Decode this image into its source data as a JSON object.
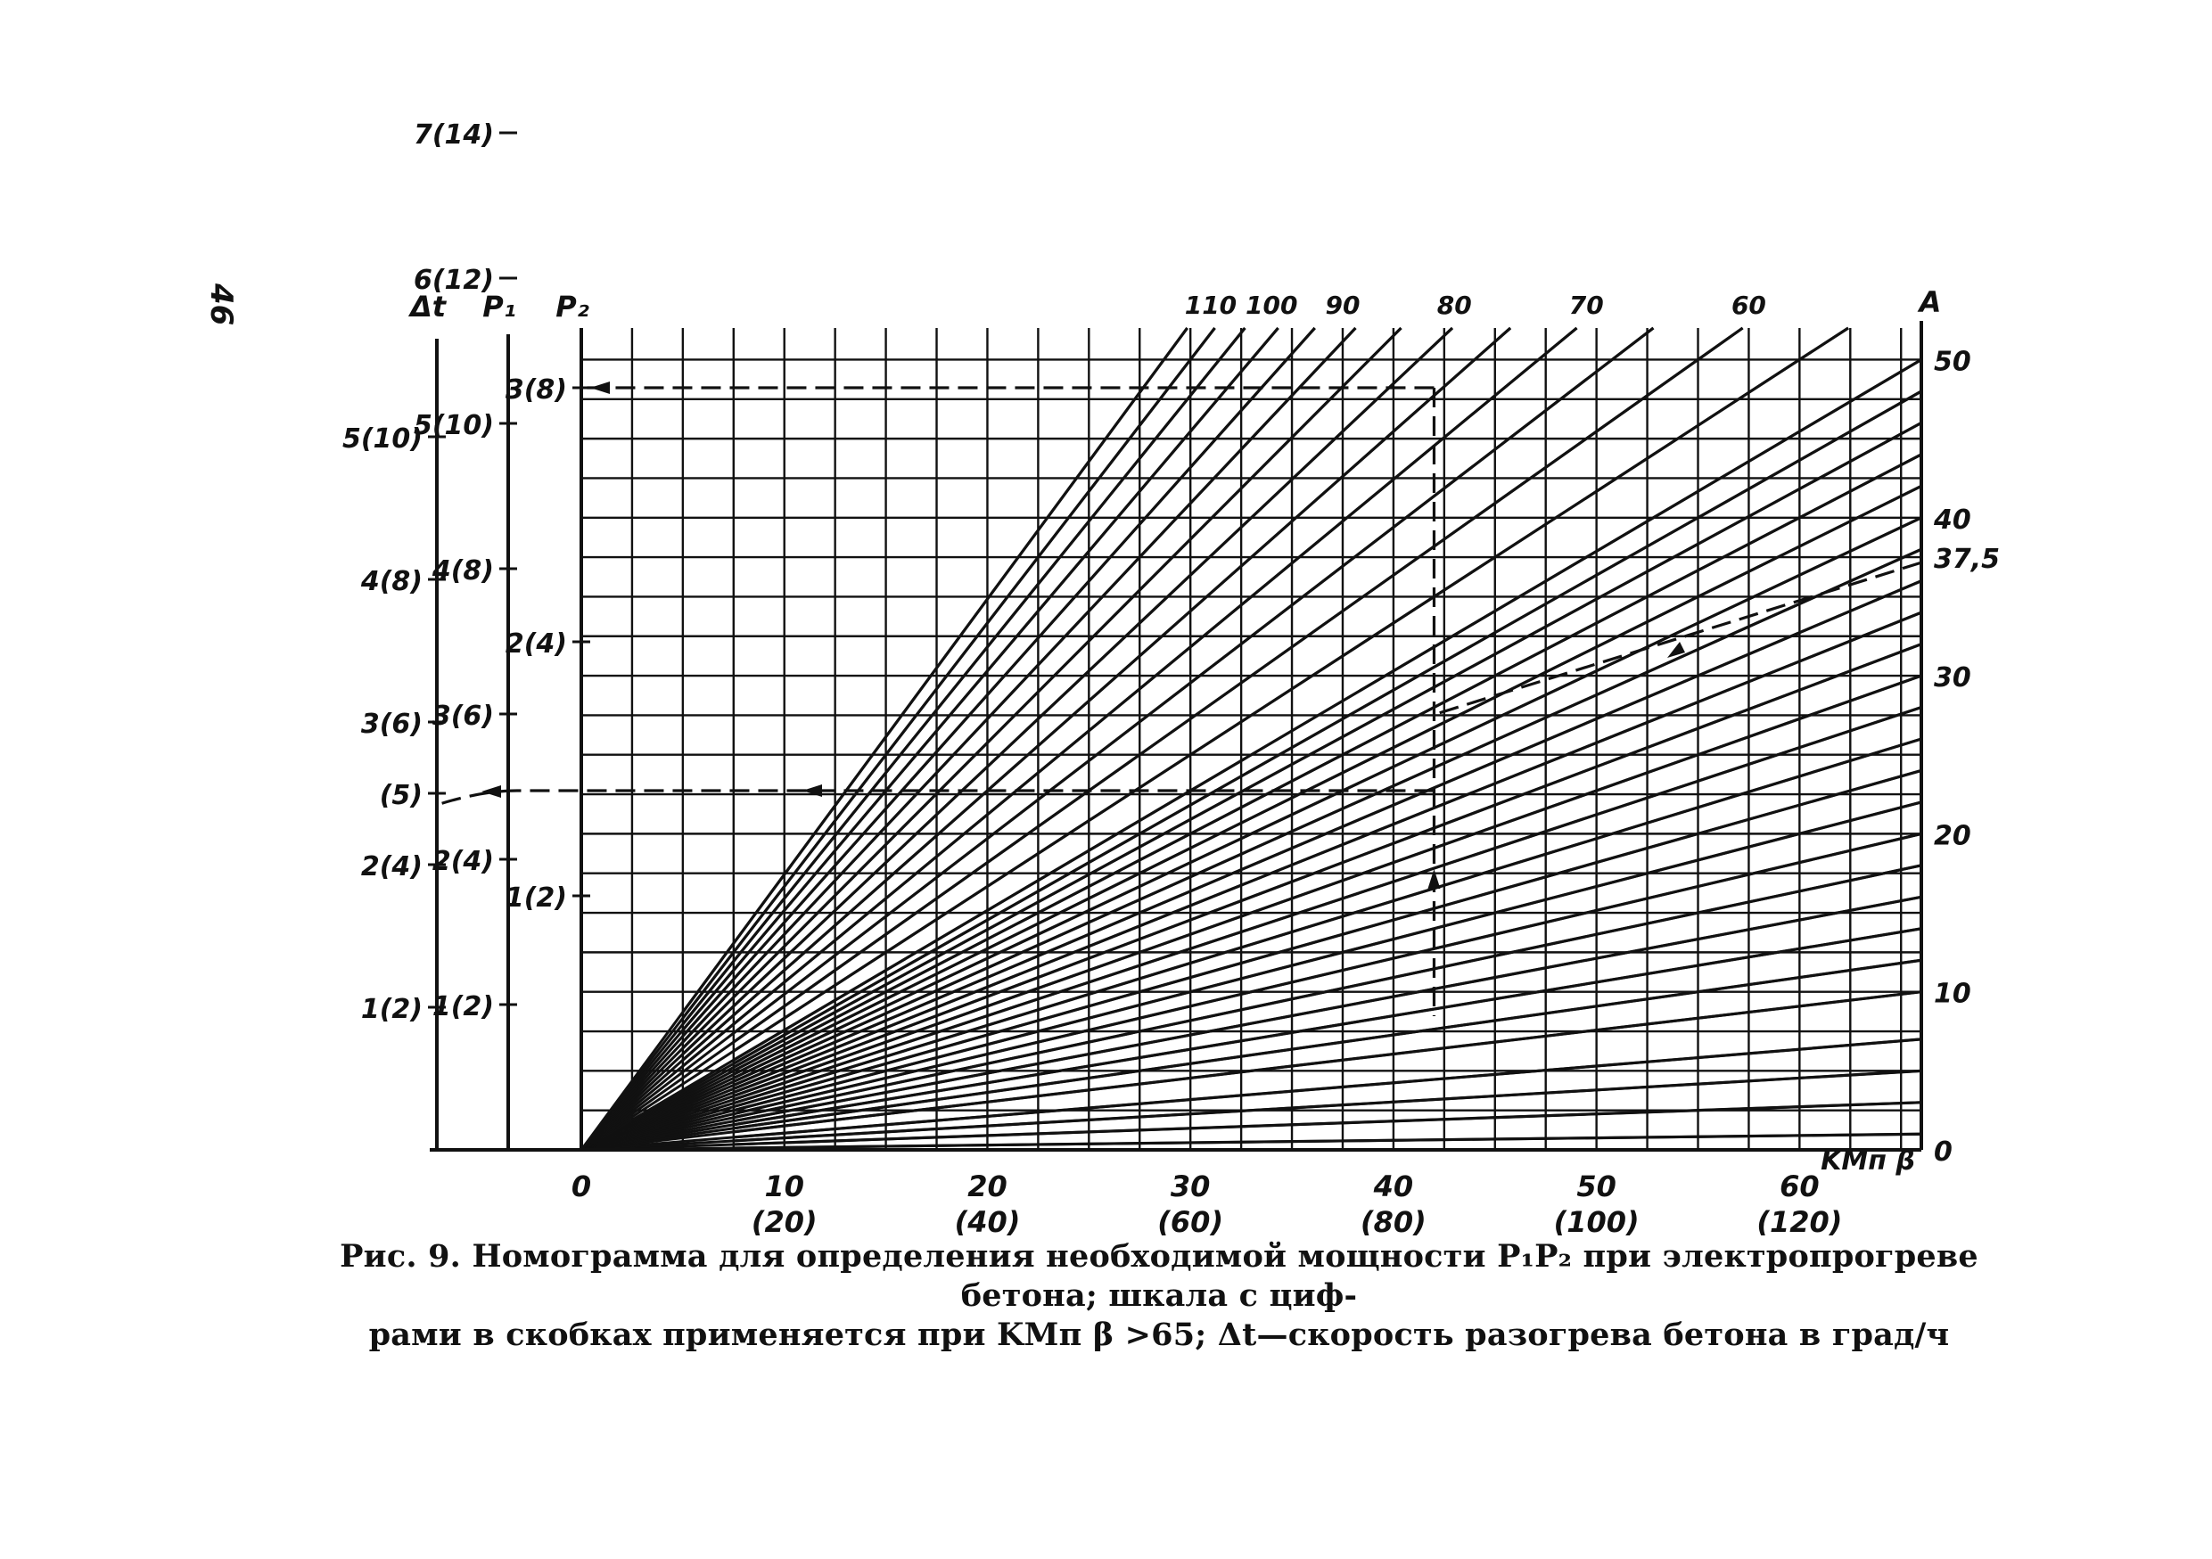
{
  "page": {
    "number": "46"
  },
  "caption": {
    "line1": "Рис. 9. Номограмма для определения необходимой мощности P₁P₂ при электропрогреве бетона; шкала с циф-",
    "line2": "рами в скобках применяется при KMп β >65; Δt—скорость разогрева бетона в град/ч"
  },
  "chart_data": {
    "type": "line",
    "title": "",
    "xlabel": "KMп β",
    "ylabel_right": "A",
    "x_range": [
      0,
      66
    ],
    "y_range": [
      0,
      52
    ],
    "x_ticks": [
      {
        "value": 0,
        "label": "0",
        "alt": ""
      },
      {
        "value": 10,
        "label": "10",
        "alt": "(20)"
      },
      {
        "value": 20,
        "label": "20",
        "alt": "(40)"
      },
      {
        "value": 30,
        "label": "30",
        "alt": "(60)"
      },
      {
        "value": 40,
        "label": "40",
        "alt": "(80)"
      },
      {
        "value": 50,
        "label": "50",
        "alt": "(100)"
      },
      {
        "value": 60,
        "label": "60",
        "alt": "(120)"
      }
    ],
    "a_ticks": [
      {
        "value": 0,
        "label": "0"
      },
      {
        "value": 10,
        "label": "10"
      },
      {
        "value": 20,
        "label": "20"
      },
      {
        "value": 30,
        "label": "30"
      },
      {
        "value": 37.5,
        "label": "37,5"
      },
      {
        "value": 40,
        "label": "40"
      },
      {
        "value": 50,
        "label": "50"
      }
    ],
    "ray_top_labels": [
      {
        "x": 31,
        "label": "110"
      },
      {
        "x": 34,
        "label": "100"
      },
      {
        "x": 37.5,
        "label": "90"
      },
      {
        "x": 43,
        "label": "80"
      },
      {
        "x": 49.5,
        "label": "70"
      },
      {
        "x": 57.5,
        "label": "60"
      }
    ],
    "rays_A": [
      1,
      3,
      5,
      7,
      10,
      12,
      14,
      16,
      18,
      20,
      22,
      24,
      26,
      28,
      30,
      32,
      34,
      36,
      38,
      40,
      42,
      44,
      46,
      48,
      50,
      55,
      60,
      65,
      70,
      75,
      80,
      85,
      90,
      95,
      100,
      105,
      110,
      115
    ],
    "scales": {
      "dt": {
        "label": "Δt",
        "ticks": [
          {
            "value": 1,
            "label": "1(2)"
          },
          {
            "value": 2,
            "label": "2(4)"
          },
          {
            "value": 2.5,
            "label": "(5)"
          },
          {
            "value": 3,
            "label": "3(6)"
          },
          {
            "value": 4,
            "label": "4(8)"
          },
          {
            "value": 5,
            "label": "5(10)"
          }
        ]
      },
      "p1": {
        "label": "P₁",
        "ticks": [
          {
            "value": 1,
            "label": "1(2)"
          },
          {
            "value": 2,
            "label": "2(4)"
          },
          {
            "value": 3,
            "label": "3(6)"
          },
          {
            "value": 4,
            "label": "4(8)"
          },
          {
            "value": 5,
            "label": "5(10)"
          },
          {
            "value": 6,
            "label": "6(12)"
          },
          {
            "value": 7,
            "label": "7(14)"
          }
        ]
      },
      "p2": {
        "label": "P₂",
        "ticks": [
          {
            "value": 1,
            "label": "1(2)"
          },
          {
            "value": 2,
            "label": "2(4)"
          },
          {
            "value": 3,
            "label": "3(8)"
          }
        ]
      }
    },
    "example": {
      "x": 42,
      "a_start": 37.5,
      "a_end": 32.5,
      "p2_level": 3,
      "dt_level": 2.5
    },
    "grid": true
  }
}
